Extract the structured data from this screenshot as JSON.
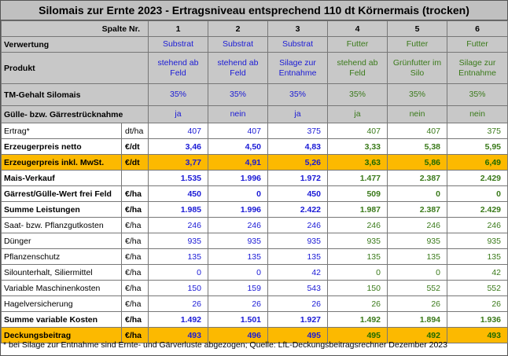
{
  "title": "Silomais zur Ernte 2023 - Ertragsniveau entsprechend 110 dt Körnermais (trocken)",
  "header": {
    "spalte_label": "Spalte Nr.",
    "columns": [
      "1",
      "2",
      "3",
      "4",
      "5",
      "6"
    ],
    "verwertung_label": "Verwertung",
    "verwertung": [
      "Substrat",
      "Substrat",
      "Substrat",
      "Futter",
      "Futter",
      "Futter"
    ],
    "produkt_label": "Produkt",
    "produkt": [
      "stehend ab Feld",
      "stehend ab Feld",
      "Silage zur Entnahme",
      "stehend ab Feld",
      "Grünfutter im Silo",
      "Silage zur Entnahme"
    ],
    "tm_label": "TM-Gehalt Silomais",
    "tm": [
      "35%",
      "35%",
      "35%",
      "35%",
      "35%",
      "35%"
    ],
    "guelle_label": "Gülle- bzw. Gärrestrücknahme",
    "guelle": [
      "ja",
      "nein",
      "ja",
      "ja",
      "nein",
      "nein"
    ]
  },
  "rows": [
    {
      "label": "Ertrag*",
      "unit": "dt/ha",
      "values": [
        "407",
        "407",
        "375",
        "407",
        "407",
        "375"
      ],
      "style": "plain"
    },
    {
      "label": "Erzeugerpreis netto",
      "unit": "€/dt",
      "values": [
        "3,46",
        "4,50",
        "4,83",
        "3,33",
        "5,38",
        "5,95"
      ],
      "style": "bold"
    },
    {
      "label": "Erzeugerpreis inkl. MwSt.",
      "unit": "€/dt",
      "values": [
        "3,77",
        "4,91",
        "5,26",
        "3,63",
        "5,86",
        "6,49"
      ],
      "style": "orange"
    },
    {
      "label": "Mais-Verkauf",
      "unit": "",
      "values": [
        "1.535",
        "1.996",
        "1.972",
        "1.477",
        "2.387",
        "2.429"
      ],
      "style": "bold"
    },
    {
      "label": "Gärrest/Gülle-Wert frei Feld",
      "unit": "€/ha",
      "values": [
        "450",
        "0",
        "450",
        "509",
        "0",
        "0"
      ],
      "style": "bold"
    },
    {
      "label": "Summe Leistungen",
      "unit": "€/ha",
      "values": [
        "1.985",
        "1.996",
        "2.422",
        "1.987",
        "2.387",
        "2.429"
      ],
      "style": "bold"
    },
    {
      "label": "Saat- bzw. Pflanzgutkosten",
      "unit": "€/ha",
      "values": [
        "246",
        "246",
        "246",
        "246",
        "246",
        "246"
      ],
      "style": "plain"
    },
    {
      "label": "Dünger",
      "unit": "€/ha",
      "values": [
        "935",
        "935",
        "935",
        "935",
        "935",
        "935"
      ],
      "style": "plain"
    },
    {
      "label": "Pflanzenschutz",
      "unit": "€/ha",
      "values": [
        "135",
        "135",
        "135",
        "135",
        "135",
        "135"
      ],
      "style": "plain"
    },
    {
      "label": "Silounterhalt, Siliermittel",
      "unit": "€/ha",
      "values": [
        "0",
        "0",
        "42",
        "0",
        "0",
        "42"
      ],
      "style": "plain"
    },
    {
      "label": "Variable Maschinenkosten",
      "unit": "€/ha",
      "values": [
        "150",
        "159",
        "543",
        "150",
        "552",
        "552"
      ],
      "style": "plain"
    },
    {
      "label": "Hagelversicherung",
      "unit": "€/ha",
      "values": [
        "26",
        "26",
        "26",
        "26",
        "26",
        "26"
      ],
      "style": "plain"
    },
    {
      "label": "Summe variable Kosten",
      "unit": "€/ha",
      "values": [
        "1.492",
        "1.501",
        "1.927",
        "1.492",
        "1.894",
        "1.936"
      ],
      "style": "bold"
    },
    {
      "label": "Deckungsbeitrag",
      "unit": "€/ha",
      "values": [
        "493",
        "496",
        "495",
        "495",
        "492",
        "493"
      ],
      "style": "orange"
    }
  ],
  "footnote": "* bei Silage zur Entnahme sind Ernte- und Gärverluste abgezogen;  Quelle: LfL-Deckungsbeitragsrechner Dezember 2023",
  "colors": {
    "header_bg": "#c8c8c8",
    "highlight_bg": "#fcb900",
    "blue_text": "#1a1ad6",
    "green_text": "#3a7a1a"
  }
}
